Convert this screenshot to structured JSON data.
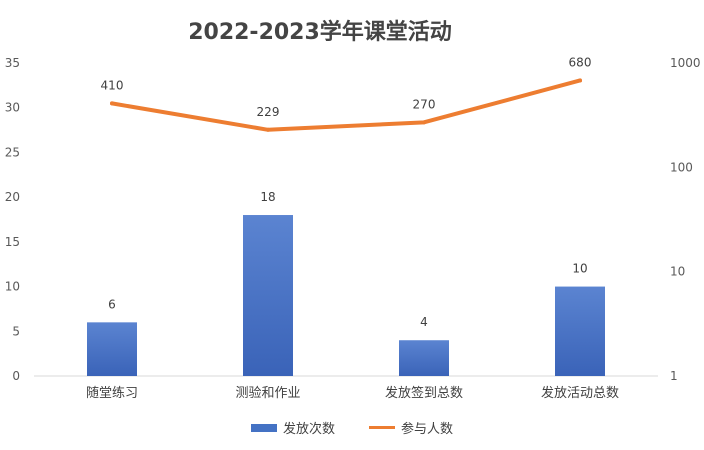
{
  "chart_data": {
    "type": "bar",
    "title": "2022-2023学年课堂活动",
    "categories": [
      "随堂练习",
      "测验和作业",
      "发放签到总数",
      "发放活动总数"
    ],
    "series": [
      {
        "name": "发放次数",
        "type": "bar",
        "axis": "left",
        "color": "#4472c4",
        "values": [
          6,
          18,
          4,
          10
        ]
      },
      {
        "name": "参与人数",
        "type": "line",
        "axis": "right",
        "color": "#ed7d31",
        "values": [
          410,
          229,
          270,
          680
        ]
      }
    ],
    "y_left": {
      "min": 0,
      "max": 35,
      "ticks": [
        "0",
        "5",
        "10",
        "15",
        "20",
        "25",
        "30",
        "35"
      ]
    },
    "y_right": {
      "scale": "log",
      "min": 1,
      "max": 1000,
      "ticks": [
        "1",
        "10",
        "100",
        "1000"
      ]
    },
    "legend": "bottom",
    "grid": false
  }
}
